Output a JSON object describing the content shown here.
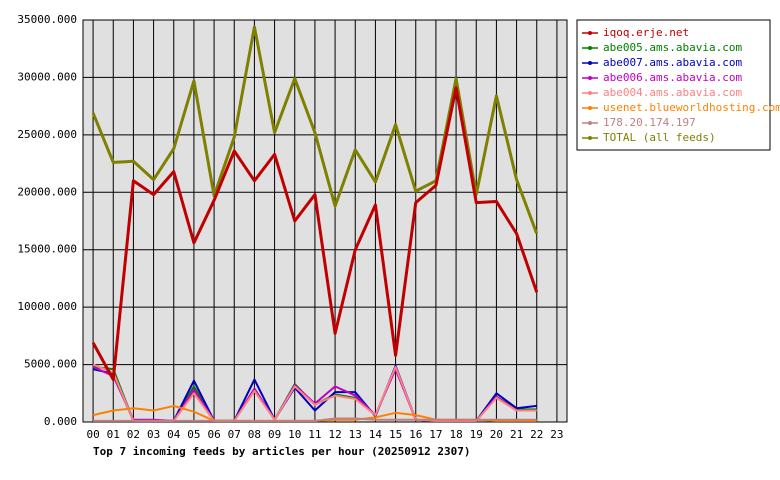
{
  "chart_data": {
    "type": "line",
    "title": "Top 7 incoming feeds by articles per hour (20250912 2307)",
    "categories": [
      "00",
      "01",
      "02",
      "03",
      "04",
      "05",
      "06",
      "07",
      "08",
      "09",
      "10",
      "11",
      "12",
      "13",
      "14",
      "15",
      "16",
      "17",
      "18",
      "19",
      "20",
      "21",
      "22",
      "23"
    ],
    "ylim": [
      0,
      35000
    ],
    "yticks": [
      {
        "value": 0,
        "label": "0.000"
      },
      {
        "value": 5000,
        "label": "5000.000"
      },
      {
        "value": 10000,
        "label": "10000.000"
      },
      {
        "value": 15000,
        "label": "15000.000"
      },
      {
        "value": 20000,
        "label": "20000.000"
      },
      {
        "value": 25000,
        "label": "25000.000"
      },
      {
        "value": 30000,
        "label": "30000.000"
      },
      {
        "value": 35000,
        "label": "35000.000"
      }
    ],
    "grid": true,
    "legend": "right",
    "series": [
      {
        "name": "iqoq.erje.net",
        "color": "#c00000",
        "values": [
          6900,
          3700,
          21000,
          19800,
          21800,
          15600,
          19300,
          23600,
          21000,
          23300,
          17500,
          19800,
          7700,
          15000,
          18900,
          5800,
          19100,
          20600,
          29100,
          19100,
          19200,
          16400,
          11300,
          null
        ]
      },
      {
        "name": "abe005.ams.abavia.com",
        "color": "#008000",
        "values": [
          4800,
          4600,
          100,
          100,
          100,
          3100,
          100,
          100,
          2900,
          200,
          3300,
          1500,
          2400,
          2100,
          600,
          4700,
          200,
          100,
          100,
          100,
          2200,
          1100,
          1100,
          null
        ]
      },
      {
        "name": "abe007.ams.abavia.com",
        "color": "#0000c0",
        "values": [
          4600,
          4200,
          100,
          100,
          100,
          3600,
          100,
          100,
          3700,
          200,
          3000,
          1000,
          2600,
          2600,
          500,
          4900,
          200,
          100,
          100,
          100,
          2500,
          1200,
          1400,
          null
        ]
      },
      {
        "name": "abe006.ams.abavia.com",
        "color": "#c000c0",
        "values": [
          4800,
          4000,
          200,
          200,
          100,
          2800,
          100,
          100,
          2900,
          200,
          3200,
          1600,
          3100,
          2300,
          600,
          4600,
          200,
          100,
          100,
          100,
          2200,
          1000,
          1000,
          null
        ]
      },
      {
        "name": "abe004.ams.abavia.com",
        "color": "#ff8080",
        "values": [
          5000,
          4300,
          100,
          100,
          100,
          2500,
          100,
          100,
          2700,
          200,
          3100,
          1500,
          2300,
          2000,
          600,
          4800,
          200,
          100,
          100,
          100,
          2100,
          1000,
          1000,
          null
        ]
      },
      {
        "name": "usenet.blueworldhosting.com",
        "color": "#ff8000",
        "values": [
          600,
          1000,
          1200,
          1000,
          1400,
          900,
          100,
          100,
          100,
          100,
          100,
          100,
          200,
          200,
          400,
          800,
          600,
          200,
          200,
          200,
          100,
          100,
          100,
          null
        ]
      },
      {
        "name": "178.20.174.197",
        "color": "#c08080",
        "values": [
          100,
          100,
          100,
          100,
          100,
          100,
          100,
          100,
          100,
          100,
          100,
          100,
          300,
          300,
          200,
          200,
          200,
          200,
          200,
          200,
          200,
          200,
          200,
          null
        ]
      },
      {
        "name": "TOTAL (all feeds)",
        "color": "#808000",
        "values": [
          26900,
          22600,
          22700,
          21100,
          23800,
          29700,
          19700,
          24800,
          34400,
          25200,
          29900,
          25200,
          18800,
          23700,
          20900,
          25900,
          20100,
          21000,
          29900,
          19800,
          28400,
          21100,
          16400,
          null
        ]
      }
    ]
  }
}
